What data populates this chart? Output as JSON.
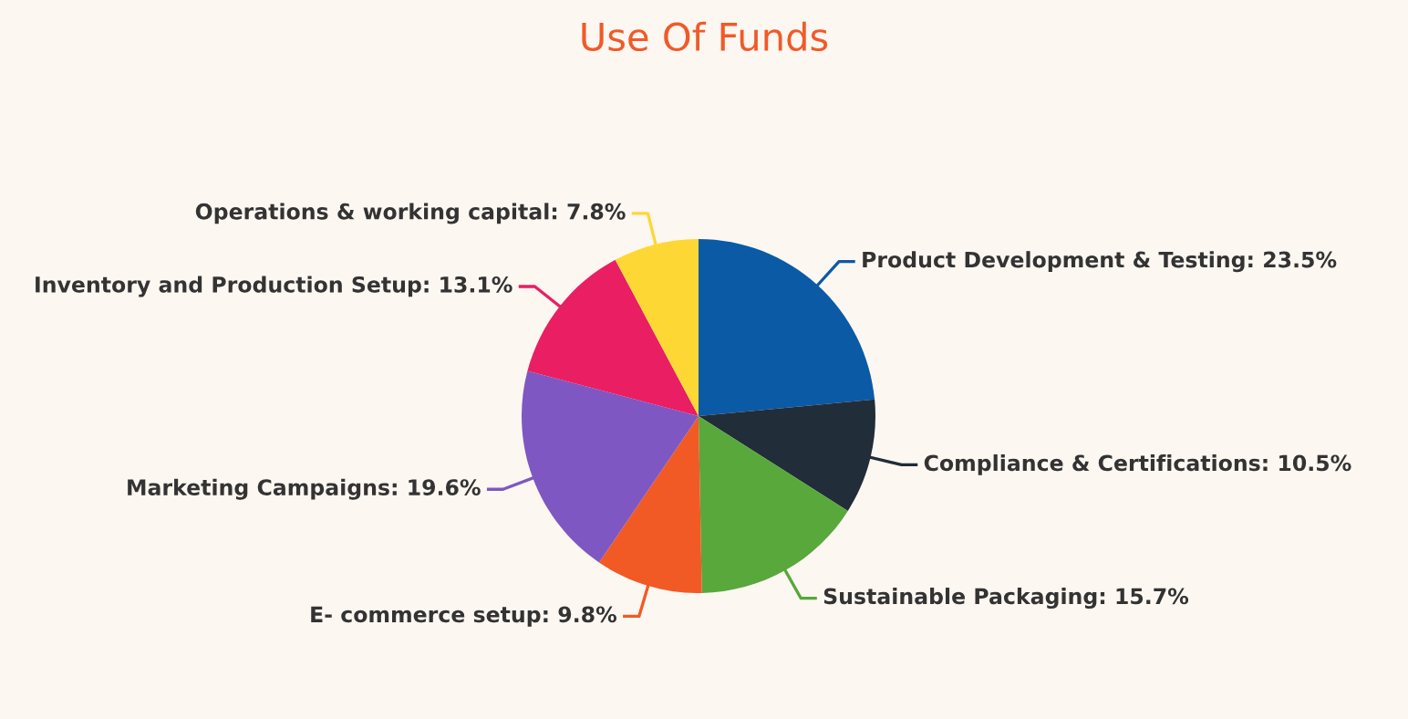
{
  "chart_data": {
    "type": "pie",
    "title": "Use Of Funds",
    "categories": [
      "Product Development & Testing",
      "Compliance & Certifications",
      "Sustainable Packaging",
      "E- commerce setup",
      "Marketing Campaigns",
      "Inventory and Production Setup",
      "Operations & working capital"
    ],
    "values": [
      23.5,
      10.5,
      15.7,
      9.8,
      19.6,
      13.1,
      7.8
    ],
    "value_labels": [
      "23.5%",
      "10.5%",
      "15.7%",
      "9.8%",
      "19.6%",
      "13.1%",
      "7.8%"
    ],
    "colors": [
      "#0b5aa5",
      "#212d38",
      "#58a83c",
      "#f15a24",
      "#7e57c2",
      "#e91e63",
      "#fdd835"
    ],
    "legend": false
  }
}
